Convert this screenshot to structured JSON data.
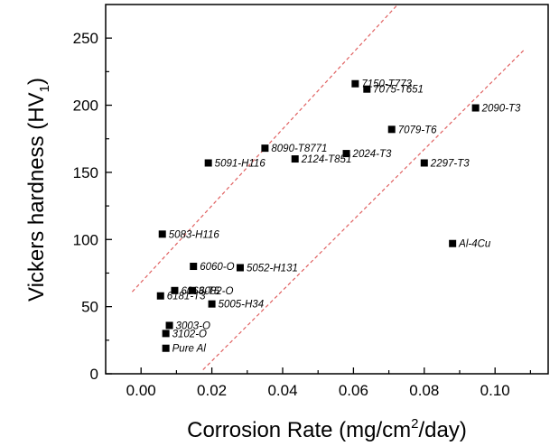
{
  "chart_data": {
    "type": "scatter",
    "title": "",
    "xlabel": {
      "main": "Corrosion Rate (mg/cm",
      "sup": "2",
      "rest": "/day)"
    },
    "ylabel": {
      "main": "Vickers hardness (HV",
      "sub": "1",
      "rest": ")"
    },
    "xlim": [
      -0.01,
      0.115
    ],
    "ylim": [
      0,
      275
    ],
    "xticks": [
      0.0,
      0.02,
      0.04,
      0.06,
      0.08,
      0.1
    ],
    "xtick_labels": [
      "0.00",
      "0.02",
      "0.04",
      "0.06",
      "0.08",
      "0.10"
    ],
    "yticks": [
      0,
      50,
      100,
      150,
      200,
      250
    ],
    "ytick_labels": [
      "0",
      "50",
      "100",
      "150",
      "200",
      "250"
    ],
    "grid": false,
    "marker_color": "#000000",
    "trend_line_color": "#e06060",
    "points": [
      {
        "label": "7150-T773",
        "x": 0.0605,
        "y": 216
      },
      {
        "label": "7075-T651",
        "x": 0.0638,
        "y": 212
      },
      {
        "label": "2090-T3",
        "x": 0.0945,
        "y": 198
      },
      {
        "label": "7079-T6",
        "x": 0.0708,
        "y": 182
      },
      {
        "label": "8090-T8771",
        "x": 0.035,
        "y": 168
      },
      {
        "label": "2024-T3",
        "x": 0.058,
        "y": 164
      },
      {
        "label": "2124-T851",
        "x": 0.0435,
        "y": 160
      },
      {
        "label": "5091-H116",
        "x": 0.019,
        "y": 157
      },
      {
        "label": "2297-T3",
        "x": 0.08,
        "y": 157
      },
      {
        "label": "5083-H116",
        "x": 0.006,
        "y": 104
      },
      {
        "label": "Al-4Cu",
        "x": 0.088,
        "y": 97
      },
      {
        "label": "6060-O",
        "x": 0.0148,
        "y": 80
      },
      {
        "label": "5052-H131",
        "x": 0.028,
        "y": 79
      },
      {
        "label": "6063-T5",
        "x": 0.0095,
        "y": 62
      },
      {
        "label": "6082-O",
        "x": 0.0145,
        "y": 62
      },
      {
        "label": "6181-T3",
        "x": 0.0055,
        "y": 58
      },
      {
        "label": "5005-H34",
        "x": 0.02,
        "y": 52
      },
      {
        "label": "3003-O",
        "x": 0.008,
        "y": 36
      },
      {
        "label": "3102-O",
        "x": 0.007,
        "y": 30
      },
      {
        "label": "Pure Al",
        "x": 0.007,
        "y": 19
      }
    ],
    "trend_lines": [
      {
        "x1": -0.0025,
        "y1": 61,
        "x2": 0.0725,
        "y2": 275
      },
      {
        "x1": 0.0175,
        "y1": 3,
        "x2": 0.1085,
        "y2": 242
      }
    ]
  }
}
